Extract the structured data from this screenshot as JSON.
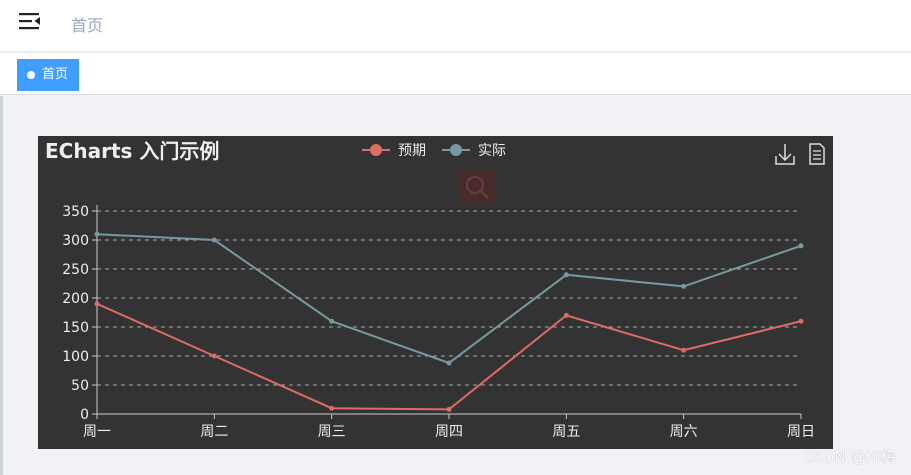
{
  "navbar": {
    "menu_icon": "hamburger-fold-icon",
    "title": "首页"
  },
  "tags": [
    {
      "label": "首页",
      "active": true
    }
  ],
  "watermark": "CSDN @Hi梅",
  "colors": {
    "accent": "#409eff",
    "chart_bg": "#333333",
    "series_expected": "#dd6b66",
    "series_actual": "#759aa0"
  },
  "toolbox": {
    "icons": [
      "download-icon",
      "data-view-icon"
    ],
    "zoom_icon": "zoom-search-icon"
  },
  "chart_data": {
    "type": "line",
    "title": "ECharts 入门示例",
    "categories": [
      "周一",
      "周二",
      "周三",
      "周四",
      "周五",
      "周六",
      "周日"
    ],
    "series": [
      {
        "name": "预期",
        "values": [
          190,
          100,
          10,
          8,
          170,
          110,
          160
        ]
      },
      {
        "name": "实际",
        "values": [
          310,
          300,
          160,
          88,
          240,
          220,
          290
        ]
      }
    ],
    "yticks": [
      0,
      50,
      100,
      150,
      200,
      250,
      300,
      350
    ],
    "ylim": [
      0,
      350
    ],
    "grid": "dashed horizontal",
    "legend": "top-center"
  }
}
